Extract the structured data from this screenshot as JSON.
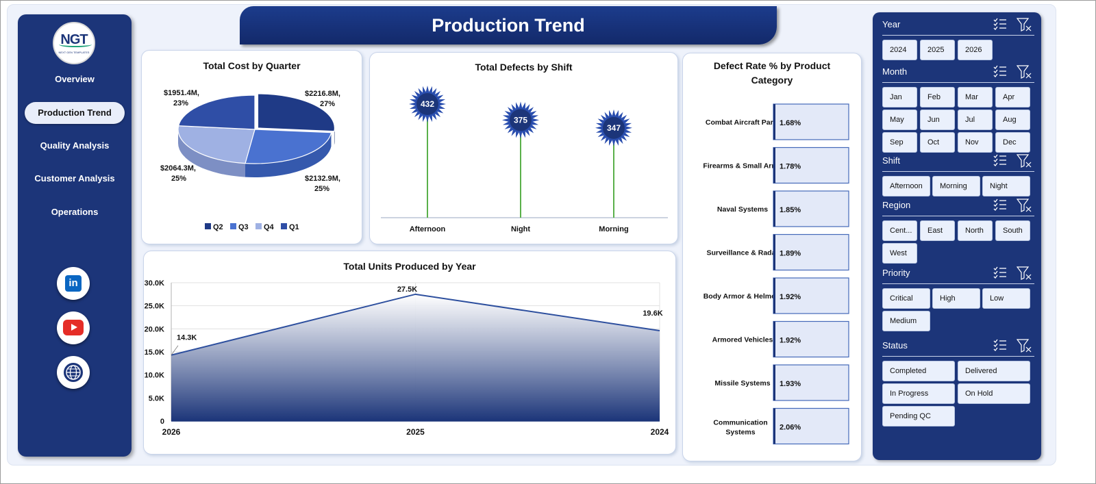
{
  "page": {
    "title": "Production Trend"
  },
  "logo": {
    "text": "NGT",
    "sub": "NEXT GEN TEMPLATES"
  },
  "nav": {
    "items": [
      {
        "label": "Overview",
        "active": false
      },
      {
        "label": "Production Trend",
        "active": true
      },
      {
        "label": "Quality Analysis",
        "active": false
      },
      {
        "label": "Customer Analysis",
        "active": false
      },
      {
        "label": "Operations",
        "active": false
      }
    ]
  },
  "social": [
    {
      "icon": "linkedin-icon"
    },
    {
      "icon": "youtube-icon"
    },
    {
      "icon": "globe-icon"
    }
  ],
  "colors": {
    "navy": "#1c3579",
    "q1": "#2f4ea6",
    "q2": "#1f3a86",
    "q3": "#4a72d0",
    "q4": "#9fb1e3",
    "stem": "#5ab04a",
    "line": "#2d4f9e"
  },
  "chart_data": [
    {
      "type": "pie",
      "title": "Total Cost by Quarter",
      "unit": "$M",
      "slices": [
        {
          "label": "Q2",
          "value": 2216.8,
          "pct": 27,
          "data_label": "$2216.8M,",
          "pct_label": "27%"
        },
        {
          "label": "Q3",
          "value": 2132.9,
          "pct": 25,
          "data_label": "$2132.9M,",
          "pct_label": "25%"
        },
        {
          "label": "Q4",
          "value": 2064.3,
          "pct": 25,
          "data_label": "$2064.3M,",
          "pct_label": "25%"
        },
        {
          "label": "Q1",
          "value": 1951.4,
          "pct": 23,
          "data_label": "$1951.4M,",
          "pct_label": "23%"
        }
      ],
      "legend": [
        "Q2",
        "Q3",
        "Q4",
        "Q1"
      ],
      "legend_position": "bottom"
    },
    {
      "type": "scatter",
      "title": "Total Defects by Shift",
      "categories": [
        "Afternoon",
        "Night",
        "Morning"
      ],
      "values": [
        432,
        375,
        347
      ],
      "ylim": [
        0,
        500
      ]
    },
    {
      "type": "bar",
      "title": "Defect Rate % by Product Category",
      "categories": [
        "Combat Aircraft Parts",
        "Firearms & Small Arms",
        "Naval Systems",
        "Surveillance & Radar",
        "Body Armor & Helmets",
        "Armored Vehicles",
        "Missile Systems",
        "Communication Systems"
      ],
      "values": [
        1.68,
        1.78,
        1.85,
        1.89,
        1.92,
        1.92,
        1.93,
        2.06
      ],
      "value_labels": [
        "1.68%",
        "1.78%",
        "1.85%",
        "1.89%",
        "1.92%",
        "1.92%",
        "1.93%",
        "2.06%"
      ]
    },
    {
      "type": "area",
      "title": "Total Units Produced by Year",
      "categories": [
        "2026",
        "2025",
        "2024"
      ],
      "values": [
        14300,
        27500,
        19600
      ],
      "value_labels": [
        "14.3K",
        "27.5K",
        "19.6K"
      ],
      "yticks": [
        "0",
        "5.0K",
        "10.0K",
        "15.0K",
        "20.0K",
        "25.0K",
        "30.0K"
      ],
      "ylim": [
        0,
        30000
      ],
      "grid": true
    }
  ],
  "filters": [
    {
      "label": "Year",
      "options": [
        "2024",
        "2025",
        "2026"
      ]
    },
    {
      "label": "Month",
      "options": [
        "Jan",
        "Feb",
        "Mar",
        "Apr",
        "May",
        "Jun",
        "Jul",
        "Aug",
        "Sep",
        "Oct",
        "Nov",
        "Dec"
      ]
    },
    {
      "label": "Shift",
      "options": [
        "Afternoon",
        "Morning",
        "Night"
      ]
    },
    {
      "label": "Region",
      "options": [
        "Cent...",
        "East",
        "North",
        "South",
        "West"
      ]
    },
    {
      "label": "Priority",
      "options": [
        "Critical",
        "High",
        "Low",
        "Medium"
      ]
    },
    {
      "label": "Status",
      "options": [
        "Completed",
        "Delivered",
        "In Progress",
        "On Hold",
        "Pending QC"
      ]
    }
  ]
}
